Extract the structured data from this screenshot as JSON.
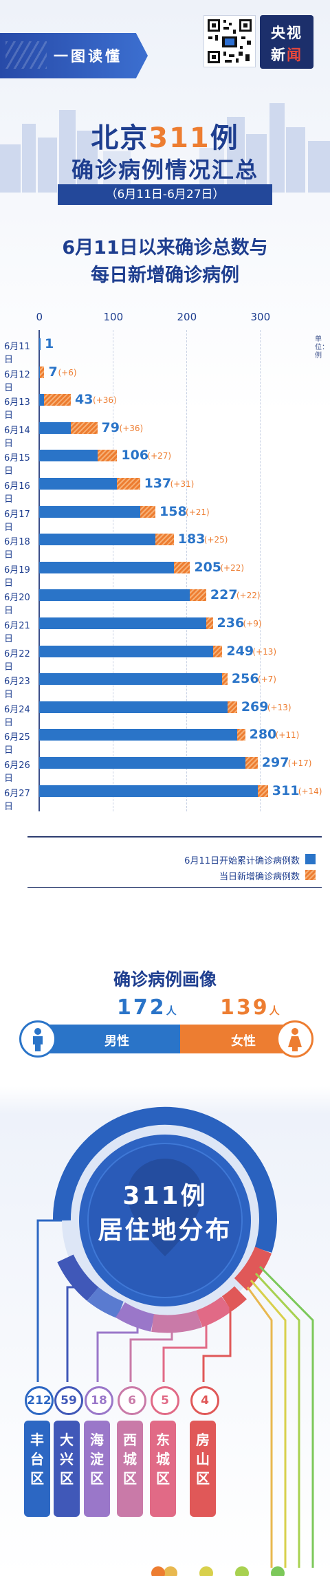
{
  "header": {
    "banner_text": "一图读懂",
    "logo_line1": "央视",
    "logo_line2_a": "新",
    "logo_line2_b": "闻"
  },
  "title": {
    "line1_prefix": "北京",
    "line1_number": "311",
    "line1_suffix": "例",
    "line2": "确诊病例情况汇总",
    "date_range": "（6月11日-6月27日）"
  },
  "chart_data": {
    "type": "bar",
    "title_line1": "6月11日以来确诊总数与",
    "title_line2": "每日新增确诊病例",
    "unit_label": "单位：例",
    "x_ticks": [
      "0",
      "100",
      "200",
      "300"
    ],
    "categories": [
      "6月11日",
      "6月12日",
      "6月13日",
      "6月14日",
      "6月15日",
      "6月16日",
      "6月17日",
      "6月18日",
      "6月19日",
      "6月20日",
      "6月21日",
      "6月22日",
      "6月23日",
      "6月24日",
      "6月25日",
      "6月26日",
      "6月27日"
    ],
    "totals": [
      1,
      7,
      43,
      79,
      106,
      137,
      158,
      183,
      205,
      227,
      236,
      249,
      256,
      269,
      280,
      297,
      311
    ],
    "increments": [
      null,
      "(+6)",
      "(+36)",
      "(+36)",
      "(+27)",
      "(+31)",
      "(+21)",
      "(+25)",
      "(+22)",
      "(+22)",
      "(+9)",
      "(+13)",
      "(+7)",
      "(+13)",
      "(+11)",
      "(+17)",
      "(+14)"
    ],
    "increment_values": [
      0,
      6,
      36,
      36,
      27,
      31,
      21,
      25,
      22,
      22,
      9,
      13,
      7,
      13,
      11,
      17,
      14
    ],
    "xlim": [
      0,
      350
    ],
    "series": [
      {
        "name": "6月11日开始累计确诊病例数",
        "color": "#2a74c8"
      },
      {
        "name": "当日新增确诊病例数",
        "color": "#ed7d31"
      }
    ]
  },
  "gender": {
    "title": "确诊病例画像",
    "male_count": "172",
    "male_unit": "人",
    "male_label": "男性",
    "male_value": 172,
    "female_count": "139",
    "female_unit": "人",
    "female_label": "女性",
    "female_value": 139,
    "male_color": "#2a74c8",
    "female_color": "#ed7d31"
  },
  "residence": {
    "title_line1": "311例",
    "title_line2": "居住地分布",
    "districts": [
      {
        "name": "丰台区",
        "count": "212",
        "color": "#2c67c3"
      },
      {
        "name": "大兴区",
        "count": "59",
        "color": "#4058b8"
      },
      {
        "name": "海淀区",
        "count": "18",
        "color": "#9a77c9"
      },
      {
        "name": "西城区",
        "count": "6",
        "color": "#c97aa8"
      },
      {
        "name": "东城区",
        "count": "5",
        "color": "#e16a86"
      },
      {
        "name": "房山区",
        "count": "4",
        "color": "#e05858"
      }
    ]
  }
}
